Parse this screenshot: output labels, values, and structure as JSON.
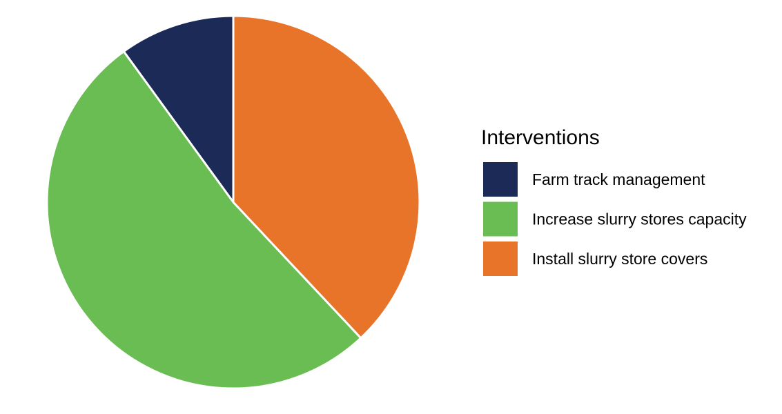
{
  "chart_data": {
    "type": "pie",
    "legend_title": "Interventions",
    "categories": [
      "Farm track management",
      "Increase slurry stores capacity",
      "Install slurry store covers"
    ],
    "values": [
      10,
      52,
      38
    ],
    "colors": [
      "#1b2a56",
      "#6abd52",
      "#e8742a"
    ],
    "start_angle": 90,
    "counterclockwise": true,
    "legend": "right"
  }
}
